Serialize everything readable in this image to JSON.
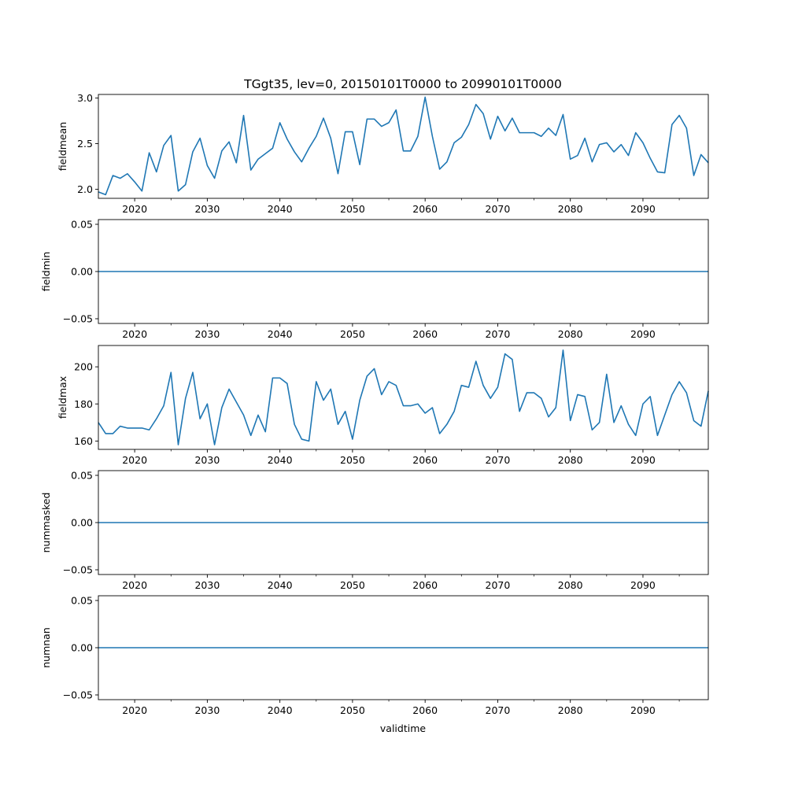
{
  "title": "TGgt35, lev=0, 20150101T0000 to 20990101T0000",
  "xlabel": "validtime",
  "colors": {
    "line": "#1f77b4",
    "axes": "#000000",
    "background": "#ffffff"
  },
  "chart_data": {
    "type": "line",
    "title": "TGgt35, lev=0, 20150101T0000 to 20990101T0000",
    "x": [
      2015,
      2016,
      2017,
      2018,
      2019,
      2020,
      2021,
      2022,
      2023,
      2024,
      2025,
      2026,
      2027,
      2028,
      2029,
      2030,
      2031,
      2032,
      2033,
      2034,
      2035,
      2036,
      2037,
      2038,
      2039,
      2040,
      2041,
      2042,
      2043,
      2044,
      2045,
      2046,
      2047,
      2048,
      2049,
      2050,
      2051,
      2052,
      2053,
      2054,
      2055,
      2056,
      2057,
      2058,
      2059,
      2060,
      2061,
      2062,
      2063,
      2064,
      2065,
      2066,
      2067,
      2068,
      2069,
      2070,
      2071,
      2072,
      2073,
      2074,
      2075,
      2076,
      2077,
      2078,
      2079,
      2080,
      2081,
      2082,
      2083,
      2084,
      2085,
      2086,
      2087,
      2088,
      2089,
      2090,
      2091,
      2092,
      2093,
      2094,
      2095,
      2096,
      2097,
      2098,
      2099
    ],
    "xlim": [
      2015,
      2099
    ],
    "xticks": [
      2020,
      2030,
      2040,
      2050,
      2060,
      2070,
      2080,
      2090
    ],
    "xminor": [
      2025,
      2035,
      2045,
      2055,
      2065,
      2075,
      2085,
      2095
    ],
    "xlabel": "validtime",
    "panels": [
      {
        "ylabel": "fieldmean",
        "ylim": [
          1.9,
          3.04
        ],
        "yticks": [
          "2.0",
          "2.5",
          "3.0"
        ],
        "ytick_values": [
          2.0,
          2.5,
          3.0
        ],
        "values": [
          1.97,
          1.94,
          2.15,
          2.12,
          2.17,
          2.08,
          1.98,
          2.4,
          2.19,
          2.48,
          2.59,
          1.98,
          2.05,
          2.41,
          2.56,
          2.26,
          2.12,
          2.42,
          2.52,
          2.29,
          2.81,
          2.21,
          2.33,
          2.39,
          2.45,
          2.73,
          2.55,
          2.41,
          2.3,
          2.45,
          2.58,
          2.78,
          2.56,
          2.17,
          2.63,
          2.63,
          2.27,
          2.77,
          2.77,
          2.69,
          2.73,
          2.87,
          2.42,
          2.42,
          2.58,
          3.01,
          2.58,
          2.22,
          2.3,
          2.51,
          2.57,
          2.71,
          2.93,
          2.83,
          2.55,
          2.8,
          2.64,
          2.78,
          2.62,
          2.62,
          2.62,
          2.58,
          2.67,
          2.59,
          2.82,
          2.33,
          2.37,
          2.56,
          2.3,
          2.49,
          2.51,
          2.41,
          2.49,
          2.37,
          2.62,
          2.51,
          2.34,
          2.19,
          2.18,
          2.71,
          2.81,
          2.67,
          2.15,
          2.38,
          2.29
        ]
      },
      {
        "ylabel": "fieldmin",
        "ylim": [
          -0.055,
          0.055
        ],
        "yticks": [
          "0.05",
          "0.00",
          "−0.05"
        ],
        "ytick_values": [
          0.05,
          0.0,
          -0.05
        ],
        "values": [
          0,
          0,
          0,
          0,
          0,
          0,
          0,
          0,
          0,
          0,
          0,
          0,
          0,
          0,
          0,
          0,
          0,
          0,
          0,
          0,
          0,
          0,
          0,
          0,
          0,
          0,
          0,
          0,
          0,
          0,
          0,
          0,
          0,
          0,
          0,
          0,
          0,
          0,
          0,
          0,
          0,
          0,
          0,
          0,
          0,
          0,
          0,
          0,
          0,
          0,
          0,
          0,
          0,
          0,
          0,
          0,
          0,
          0,
          0,
          0,
          0,
          0,
          0,
          0,
          0,
          0,
          0,
          0,
          0,
          0,
          0,
          0,
          0,
          0,
          0,
          0,
          0,
          0,
          0,
          0,
          0,
          0,
          0,
          0,
          0
        ]
      },
      {
        "ylabel": "fieldmax",
        "ylim": [
          155.5,
          211.5
        ],
        "yticks": [
          "200",
          "180",
          "160"
        ],
        "ytick_values": [
          200,
          180,
          160
        ],
        "values": [
          170,
          164,
          164,
          168,
          167,
          167,
          167,
          166,
          172,
          179,
          197,
          158,
          183,
          197,
          172,
          180,
          158,
          178,
          188,
          181,
          174,
          163,
          174,
          165,
          194,
          194,
          191,
          169,
          161,
          160,
          192,
          182,
          188,
          169,
          176,
          161,
          182,
          195,
          199,
          185,
          192,
          190,
          179,
          179,
          180,
          175,
          178,
          164,
          169,
          176,
          190,
          189,
          203,
          190,
          183,
          189,
          207,
          204,
          176,
          186,
          186,
          183,
          173,
          178,
          209,
          171,
          185,
          184,
          166,
          170,
          196,
          170,
          179,
          169,
          163,
          180,
          184,
          163,
          174,
          185,
          192,
          186,
          171,
          168,
          187
        ]
      },
      {
        "ylabel": "nummasked",
        "ylim": [
          -0.055,
          0.055
        ],
        "yticks": [
          "0.05",
          "0.00",
          "−0.05"
        ],
        "ytick_values": [
          0.05,
          0.0,
          -0.05
        ],
        "values": [
          0,
          0,
          0,
          0,
          0,
          0,
          0,
          0,
          0,
          0,
          0,
          0,
          0,
          0,
          0,
          0,
          0,
          0,
          0,
          0,
          0,
          0,
          0,
          0,
          0,
          0,
          0,
          0,
          0,
          0,
          0,
          0,
          0,
          0,
          0,
          0,
          0,
          0,
          0,
          0,
          0,
          0,
          0,
          0,
          0,
          0,
          0,
          0,
          0,
          0,
          0,
          0,
          0,
          0,
          0,
          0,
          0,
          0,
          0,
          0,
          0,
          0,
          0,
          0,
          0,
          0,
          0,
          0,
          0,
          0,
          0,
          0,
          0,
          0,
          0,
          0,
          0,
          0,
          0,
          0,
          0,
          0,
          0,
          0,
          0
        ]
      },
      {
        "ylabel": "numnan",
        "ylim": [
          -0.055,
          0.055
        ],
        "yticks": [
          "0.05",
          "0.00",
          "−0.05"
        ],
        "ytick_values": [
          0.05,
          0.0,
          -0.05
        ],
        "values": [
          0,
          0,
          0,
          0,
          0,
          0,
          0,
          0,
          0,
          0,
          0,
          0,
          0,
          0,
          0,
          0,
          0,
          0,
          0,
          0,
          0,
          0,
          0,
          0,
          0,
          0,
          0,
          0,
          0,
          0,
          0,
          0,
          0,
          0,
          0,
          0,
          0,
          0,
          0,
          0,
          0,
          0,
          0,
          0,
          0,
          0,
          0,
          0,
          0,
          0,
          0,
          0,
          0,
          0,
          0,
          0,
          0,
          0,
          0,
          0,
          0,
          0,
          0,
          0,
          0,
          0,
          0,
          0,
          0,
          0,
          0,
          0,
          0,
          0,
          0,
          0,
          0,
          0,
          0,
          0,
          0,
          0,
          0,
          0,
          0
        ]
      }
    ]
  }
}
